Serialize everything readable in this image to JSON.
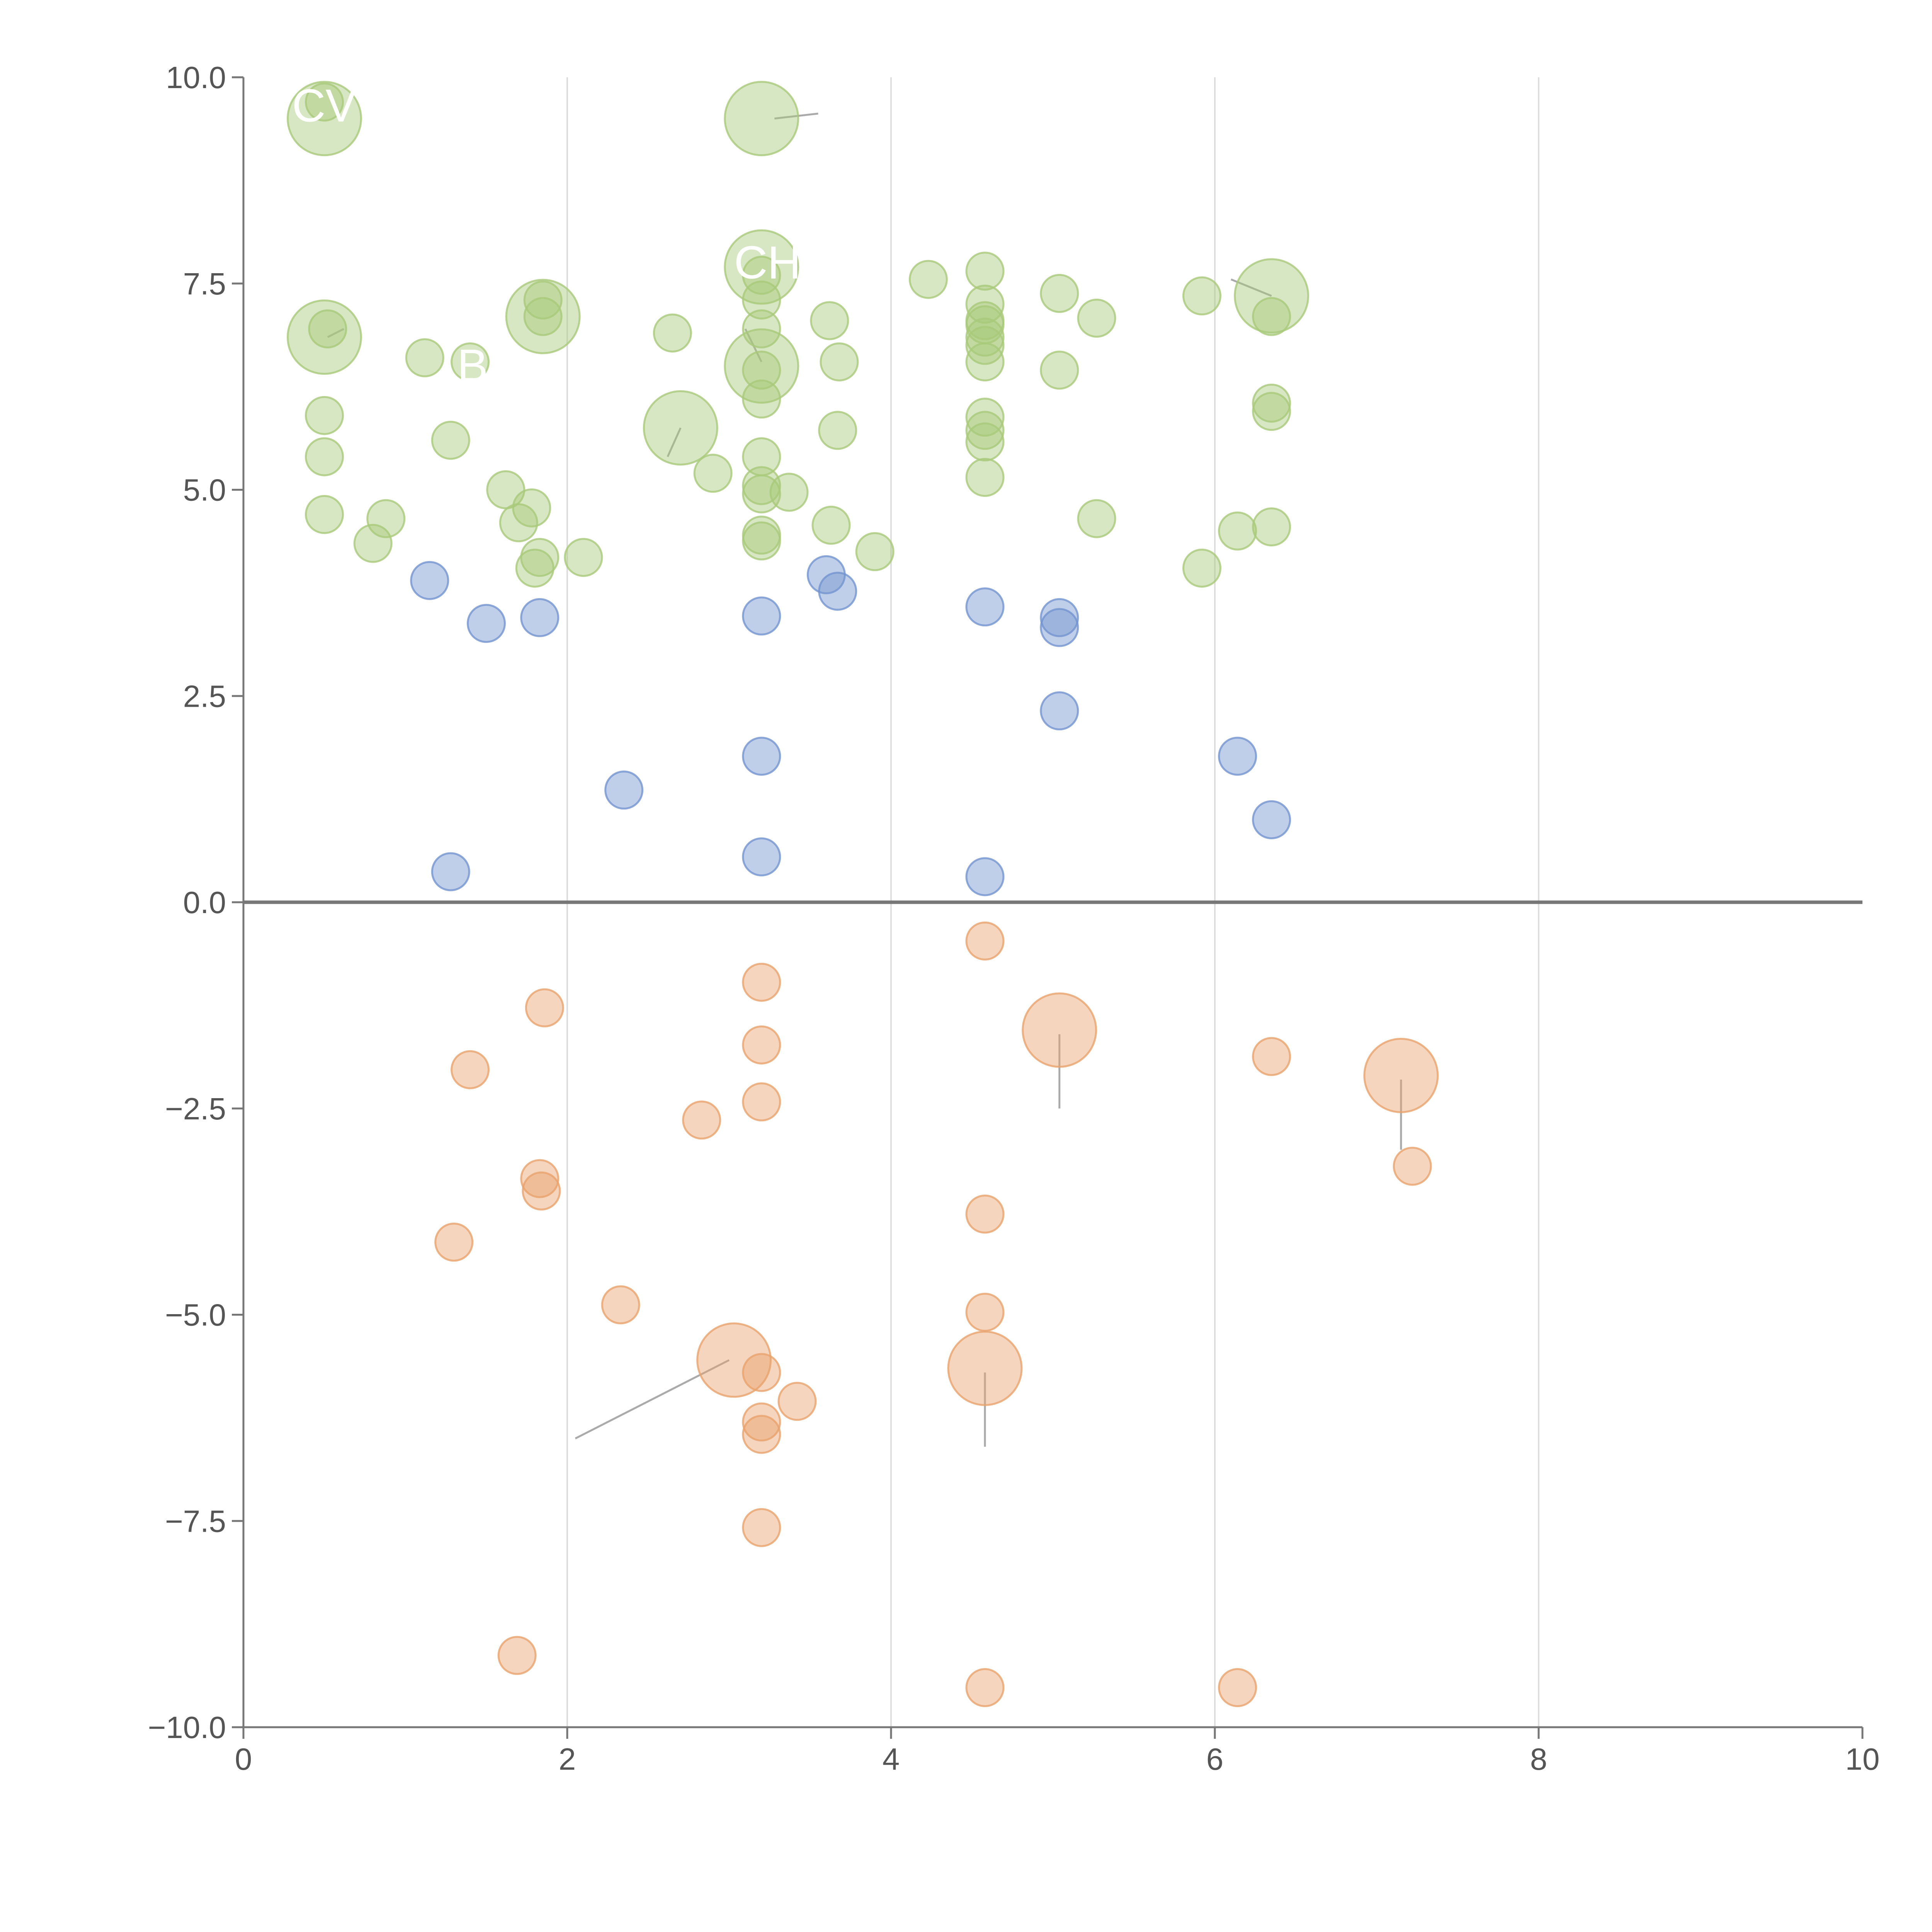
{
  "chart_data": {
    "type": "scatter",
    "title": "",
    "xlabel": "",
    "ylabel": "",
    "xlim": [
      0,
      10
    ],
    "ylim": [
      -10,
      10
    ],
    "xticks": [
      "0",
      "2",
      "4",
      "6",
      "8",
      "10"
    ],
    "yticks": [
      "10.0",
      "7.5",
      "5.0",
      "2.5",
      "0.0",
      "−2.5",
      "−5.0",
      "−7.5",
      "−10.0"
    ],
    "grid": "vertical",
    "zero_line": true,
    "colors": {
      "green": "#a9c97b",
      "blue": "#7394cf",
      "orange": "#e9a26d",
      "axis": "#777777",
      "grid": "#dddddd",
      "label_line": "#aaaaaa"
    },
    "series": [
      {
        "color_key": "green",
        "points": [
          {
            "x": 0.5,
            "y": 9.5,
            "size": "large"
          },
          {
            "x": 3.2,
            "y": 9.5,
            "size": "large"
          },
          {
            "x": 3.2,
            "y": 7.7,
            "size": "large"
          },
          {
            "x": 1.85,
            "y": 7.1,
            "size": "large"
          },
          {
            "x": 0.5,
            "y": 6.85,
            "size": "large"
          },
          {
            "x": 3.2,
            "y": 6.5,
            "size": "large"
          },
          {
            "x": 2.7,
            "y": 5.75,
            "size": "large"
          },
          {
            "x": 6.35,
            "y": 7.35,
            "size": "large"
          },
          {
            "x": 0.5,
            "y": 9.7
          },
          {
            "x": 0.52,
            "y": 6.95
          },
          {
            "x": 1.12,
            "y": 6.6
          },
          {
            "x": 1.4,
            "y": 6.55
          },
          {
            "x": 1.85,
            "y": 7.3
          },
          {
            "x": 1.85,
            "y": 7.1
          },
          {
            "x": 0.5,
            "y": 5.9
          },
          {
            "x": 1.28,
            "y": 5.6
          },
          {
            "x": 0.5,
            "y": 5.4
          },
          {
            "x": 1.62,
            "y": 5.0
          },
          {
            "x": 0.5,
            "y": 4.7
          },
          {
            "x": 0.88,
            "y": 4.65
          },
          {
            "x": 1.78,
            "y": 4.78
          },
          {
            "x": 1.7,
            "y": 4.6
          },
          {
            "x": 0.8,
            "y": 4.35
          },
          {
            "x": 1.83,
            "y": 4.18
          },
          {
            "x": 1.8,
            "y": 4.05
          },
          {
            "x": 2.1,
            "y": 4.18
          },
          {
            "x": 2.65,
            "y": 6.9
          },
          {
            "x": 2.9,
            "y": 5.2
          },
          {
            "x": 3.2,
            "y": 7.6
          },
          {
            "x": 3.2,
            "y": 7.3
          },
          {
            "x": 3.2,
            "y": 6.95
          },
          {
            "x": 3.2,
            "y": 6.45
          },
          {
            "x": 3.2,
            "y": 6.1
          },
          {
            "x": 3.2,
            "y": 5.4
          },
          {
            "x": 3.2,
            "y": 5.05
          },
          {
            "x": 3.2,
            "y": 4.95
          },
          {
            "x": 3.37,
            "y": 4.97
          },
          {
            "x": 3.2,
            "y": 4.45
          },
          {
            "x": 3.2,
            "y": 4.38
          },
          {
            "x": 3.62,
            "y": 7.05
          },
          {
            "x": 3.68,
            "y": 6.55
          },
          {
            "x": 3.67,
            "y": 5.72
          },
          {
            "x": 3.63,
            "y": 4.57
          },
          {
            "x": 3.9,
            "y": 4.25
          },
          {
            "x": 4.23,
            "y": 7.55
          },
          {
            "x": 4.58,
            "y": 7.65
          },
          {
            "x": 4.58,
            "y": 7.25
          },
          {
            "x": 4.58,
            "y": 7.05
          },
          {
            "x": 4.58,
            "y": 7.0
          },
          {
            "x": 4.58,
            "y": 6.85
          },
          {
            "x": 4.58,
            "y": 6.75
          },
          {
            "x": 4.58,
            "y": 6.55
          },
          {
            "x": 4.58,
            "y": 5.88
          },
          {
            "x": 4.58,
            "y": 5.72
          },
          {
            "x": 4.58,
            "y": 5.58
          },
          {
            "x": 4.58,
            "y": 5.15
          },
          {
            "x": 5.04,
            "y": 7.38
          },
          {
            "x": 5.04,
            "y": 6.45
          },
          {
            "x": 5.27,
            "y": 7.08
          },
          {
            "x": 5.27,
            "y": 4.65
          },
          {
            "x": 5.92,
            "y": 7.35
          },
          {
            "x": 5.92,
            "y": 4.05
          },
          {
            "x": 6.14,
            "y": 4.5
          },
          {
            "x": 6.35,
            "y": 7.1
          },
          {
            "x": 6.35,
            "y": 6.05
          },
          {
            "x": 6.35,
            "y": 5.95
          },
          {
            "x": 6.35,
            "y": 4.55
          }
        ]
      },
      {
        "color_key": "blue",
        "points": [
          {
            "x": 1.15,
            "y": 3.9
          },
          {
            "x": 1.5,
            "y": 3.38
          },
          {
            "x": 1.83,
            "y": 3.45
          },
          {
            "x": 1.28,
            "y": 0.37
          },
          {
            "x": 2.35,
            "y": 1.36
          },
          {
            "x": 3.2,
            "y": 3.47
          },
          {
            "x": 3.2,
            "y": 1.77
          },
          {
            "x": 3.2,
            "y": 0.55
          },
          {
            "x": 3.6,
            "y": 3.97
          },
          {
            "x": 3.67,
            "y": 3.77
          },
          {
            "x": 4.58,
            "y": 3.58
          },
          {
            "x": 4.58,
            "y": 0.31
          },
          {
            "x": 5.04,
            "y": 3.45
          },
          {
            "x": 5.04,
            "y": 3.33
          },
          {
            "x": 5.04,
            "y": 2.32
          },
          {
            "x": 6.14,
            "y": 1.77
          },
          {
            "x": 6.35,
            "y": 1.0
          }
        ]
      },
      {
        "color_key": "orange",
        "points": [
          {
            "x": 5.04,
            "y": -1.55,
            "size": "large"
          },
          {
            "x": 7.15,
            "y": -2.1,
            "size": "large"
          },
          {
            "x": 3.03,
            "y": -5.55,
            "size": "large"
          },
          {
            "x": 4.58,
            "y": -5.65,
            "size": "large"
          },
          {
            "x": 4.58,
            "y": -0.47
          },
          {
            "x": 3.2,
            "y": -0.97
          },
          {
            "x": 1.86,
            "y": -1.28
          },
          {
            "x": 3.2,
            "y": -1.73
          },
          {
            "x": 1.4,
            "y": -2.03
          },
          {
            "x": 3.2,
            "y": -2.42
          },
          {
            "x": 2.83,
            "y": -2.64
          },
          {
            "x": 6.35,
            "y": -1.87
          },
          {
            "x": 7.22,
            "y": -3.2
          },
          {
            "x": 1.83,
            "y": -3.35
          },
          {
            "x": 1.84,
            "y": -3.5
          },
          {
            "x": 4.58,
            "y": -3.78
          },
          {
            "x": 1.3,
            "y": -4.12
          },
          {
            "x": 2.33,
            "y": -4.88
          },
          {
            "x": 4.58,
            "y": -4.97
          },
          {
            "x": 3.2,
            "y": -5.7
          },
          {
            "x": 3.42,
            "y": -6.05
          },
          {
            "x": 3.2,
            "y": -6.3
          },
          {
            "x": 3.2,
            "y": -6.45
          },
          {
            "x": 3.2,
            "y": -7.58
          },
          {
            "x": 1.69,
            "y": -9.13
          },
          {
            "x": 4.58,
            "y": -9.52
          },
          {
            "x": 6.14,
            "y": -9.52
          }
        ]
      }
    ],
    "annotations": [
      {
        "text": "CV",
        "x": 0.3,
        "y": 9.65
      },
      {
        "text": "CH",
        "x": 3.03,
        "y": 7.75
      },
      {
        "text": "B",
        "x": 1.32,
        "y": 6.5
      }
    ],
    "leader_lines": [
      {
        "x1": 3.28,
        "y1": 9.5,
        "x2": 3.55,
        "y2": 9.56
      },
      {
        "x1": 0.62,
        "y1": 6.95,
        "x2": 0.52,
        "y2": 6.85
      },
      {
        "x1": 2.7,
        "y1": 5.75,
        "x2": 2.62,
        "y2": 5.4
      },
      {
        "x1": 3.2,
        "y1": 6.55,
        "x2": 3.1,
        "y2": 6.95
      },
      {
        "x1": 6.35,
        "y1": 7.35,
        "x2": 6.1,
        "y2": 7.55
      },
      {
        "x1": 5.04,
        "y1": -1.6,
        "x2": 5.04,
        "y2": -2.5
      },
      {
        "x1": 7.15,
        "y1": -2.15,
        "x2": 7.15,
        "y2": -3.0
      },
      {
        "x1": 3.0,
        "y1": -5.55,
        "x2": 2.05,
        "y2": -6.5
      },
      {
        "x1": 4.58,
        "y1": -5.7,
        "x2": 4.58,
        "y2": -6.6
      }
    ]
  }
}
